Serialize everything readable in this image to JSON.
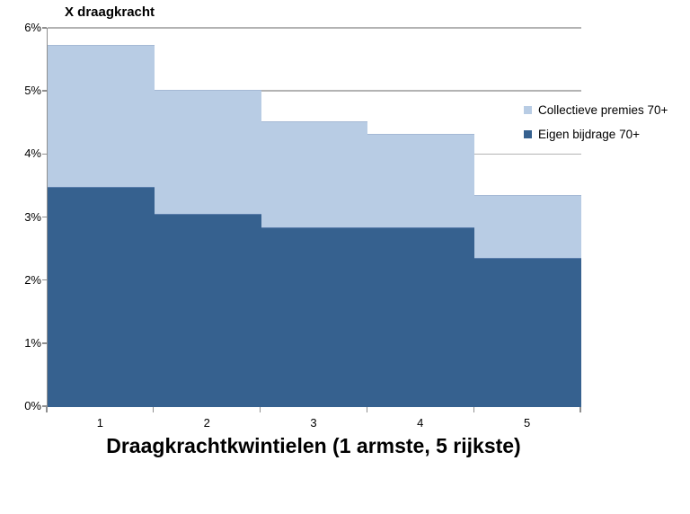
{
  "chart_data": {
    "type": "area",
    "subtype": "stacked-step-area",
    "title": "X draagkracht",
    "xlabel": "Draagkrachtkwintielen (1 armste, 5 rijkste)",
    "ylabel": "",
    "categories": [
      "1",
      "2",
      "3",
      "4",
      "5"
    ],
    "series": [
      {
        "name": "Eigen bijdrage 70+",
        "color": "#36618f",
        "values": [
          3.48,
          3.05,
          2.84,
          2.84,
          2.35
        ]
      },
      {
        "name": "Collectieve premies 70+",
        "color": "#b8cce4",
        "values": [
          2.25,
          1.97,
          1.68,
          1.48,
          1.0
        ]
      }
    ],
    "stacked_totals": [
      5.73,
      5.02,
      4.52,
      4.32,
      3.35
    ],
    "ylim": [
      0,
      6
    ],
    "ytick_labels": [
      "0%",
      "1%",
      "2%",
      "3%",
      "4%",
      "5%",
      "6%"
    ],
    "grid": true,
    "legend_position": "right-middle",
    "legend_order": [
      "Collectieve premies 70+",
      "Eigen bijdrage 70+"
    ]
  },
  "colors": {
    "dark_series": "#36618f",
    "light_series": "#b8cce4",
    "gridline": "#b3b3b3",
    "axis": "#8f8f8f",
    "background": "#ffffff"
  }
}
